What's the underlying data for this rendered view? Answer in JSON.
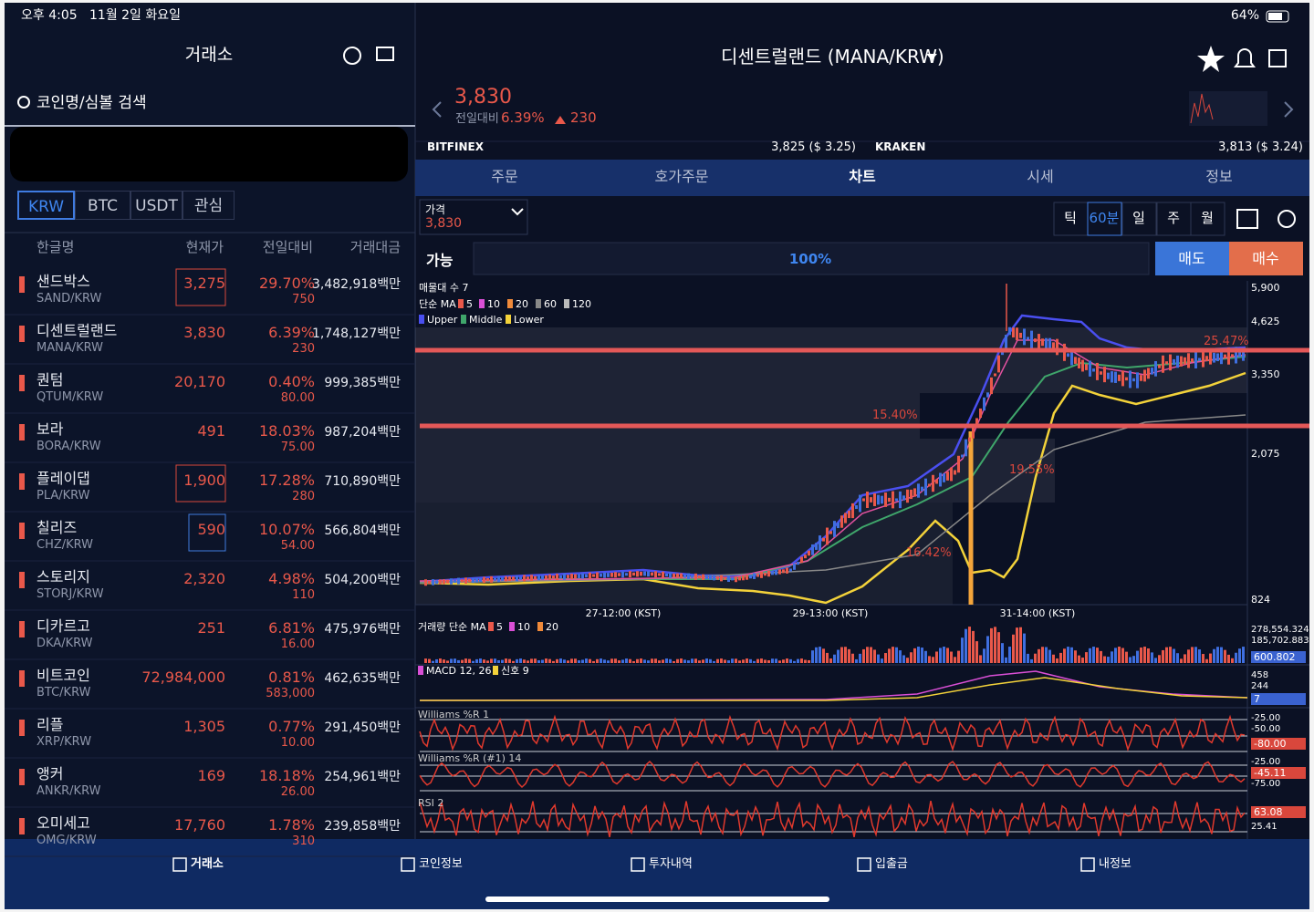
{
  "status_bar": {
    "time": "오후 4:05",
    "date": "11월 2일 화요일",
    "battery": "64%"
  },
  "sidebar": {
    "title": "거래소",
    "search_placeholder": "코인명/심볼 검색",
    "market_tabs": [
      "KRW",
      "BTC",
      "USDT",
      "관심"
    ],
    "columns": [
      "한글명",
      "현재가",
      "전일대비",
      "거래대금"
    ],
    "rows": [
      {
        "name": "샌드박스",
        "symbol": "SAND/KRW",
        "price": "3,275",
        "change_pct": "29.70%",
        "change_amt": "750",
        "volume": "3,482,918백만"
      },
      {
        "name": "디센트럴랜드",
        "symbol": "MANA/KRW",
        "price": "3,830",
        "change_pct": "6.39%",
        "change_amt": "230",
        "volume": "1,748,127백만"
      },
      {
        "name": "퀀텀",
        "symbol": "QTUM/KRW",
        "price": "20,170",
        "change_pct": "0.40%",
        "change_amt": "80.00",
        "volume": "999,385백만"
      },
      {
        "name": "보라",
        "symbol": "BORA/KRW",
        "price": "491",
        "change_pct": "18.03%",
        "change_amt": "75.00",
        "volume": "987,204백만"
      },
      {
        "name": "플레이댑",
        "symbol": "PLA/KRW",
        "price": "1,900",
        "change_pct": "17.28%",
        "change_amt": "280",
        "volume": "710,890백만"
      },
      {
        "name": "칠리즈",
        "symbol": "CHZ/KRW",
        "price": "590",
        "change_pct": "10.07%",
        "change_amt": "54.00",
        "volume": "566,804백만"
      },
      {
        "name": "스토리지",
        "symbol": "STORJ/KRW",
        "price": "2,320",
        "change_pct": "4.98%",
        "change_amt": "110",
        "volume": "504,200백만"
      },
      {
        "name": "디카르고",
        "symbol": "DKA/KRW",
        "price": "251",
        "change_pct": "6.81%",
        "change_amt": "16.00",
        "volume": "475,976백만"
      },
      {
        "name": "비트코인",
        "symbol": "BTC/KRW",
        "price": "72,984,000",
        "change_pct": "0.81%",
        "change_amt": "583,000",
        "volume": "462,635백만"
      },
      {
        "name": "리플",
        "symbol": "XRP/KRW",
        "price": "1,305",
        "change_pct": "0.77%",
        "change_amt": "10.00",
        "volume": "291,450백만"
      },
      {
        "name": "앵커",
        "symbol": "ANKR/KRW",
        "price": "169",
        "change_pct": "18.18%",
        "change_amt": "26.00",
        "volume": "254,961백만"
      },
      {
        "name": "오미세고",
        "symbol": "OMG/KRW",
        "price": "17,760",
        "change_pct": "1.78%",
        "change_amt": "310",
        "volume": "239,858백만"
      }
    ]
  },
  "header": {
    "title": "디센트럴랜드 (MANA/KRW)",
    "price": "3,830",
    "change_label": "전일대비",
    "change_pct": "6.39%",
    "change_amt": "230"
  },
  "exchanges": [
    {
      "name": "BITFINEX",
      "price": "3,825 ($ 3.25)"
    },
    {
      "name": "KRAKEN",
      "price": "3,813 ($ 3.24)"
    }
  ],
  "tabs": [
    "주문",
    "호가주문",
    "차트",
    "시세",
    "정보"
  ],
  "order_bar": {
    "price_label": "가격",
    "price": "3,830",
    "intervals": [
      "틱",
      "60분",
      "일",
      "주",
      "월"
    ],
    "available": "가능",
    "ratio": "100%",
    "sell": "매도",
    "buy": "매수"
  },
  "chart": {
    "legend_title": "매물대 수 7",
    "ma_label": "단순 MA",
    "ma_periods": [
      "5",
      "10",
      "20",
      "60",
      "120"
    ],
    "bands": [
      "Upper",
      "Middle",
      "Lower"
    ],
    "price_axis": [
      "5,900",
      "4,625",
      "3,350",
      "2,075",
      "824"
    ],
    "time_axis": [
      "27-12:00 (KST)",
      "29-13:00 (KST)",
      "31-14:00 (KST)"
    ],
    "annotations": [
      "15.40%",
      "19.55%",
      "16.42%",
      "25.47%"
    ],
    "volume": {
      "label": "거래량 단순 MA",
      "periods": [
        "5",
        "10",
        "20"
      ],
      "axis": [
        "278,554.324",
        "185,702.883",
        "600.802"
      ]
    },
    "macd": {
      "label": "MACD 12, 26",
      "signal": "신호 9",
      "axis": [
        "458",
        "244",
        "7"
      ]
    },
    "williams1": {
      "label": "Williams %R 1",
      "axis": [
        "-25.00",
        "-50.00",
        "-80.00"
      ]
    },
    "williams2": {
      "label": "Williams %R (#1) 14",
      "axis": [
        "-25.00",
        "-45.11",
        "-75.00"
      ]
    },
    "rsi": {
      "label": "RSI 2",
      "axis": [
        "63.08",
        "25.41"
      ]
    }
  },
  "nav": [
    "거래소",
    "코인정보",
    "투자내역",
    "입출금",
    "내정보"
  ]
}
